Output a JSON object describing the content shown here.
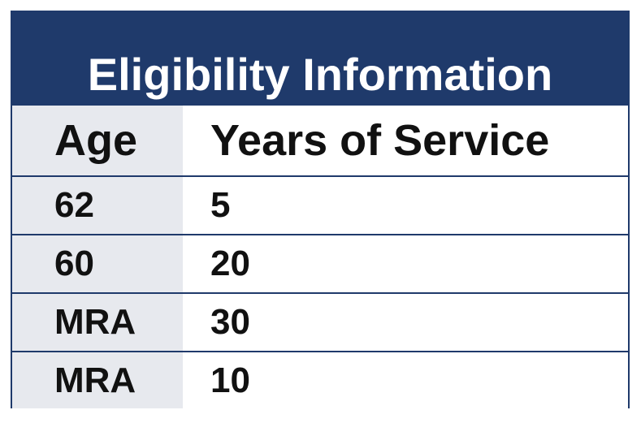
{
  "title": "Eligibility Information",
  "columns": [
    "Age",
    "Years of Service"
  ],
  "rows": [
    {
      "age": "62",
      "years_of_service": "5"
    },
    {
      "age": "60",
      "years_of_service": "20"
    },
    {
      "age": "MRA",
      "years_of_service": "30"
    },
    {
      "age": "MRA",
      "years_of_service": "10"
    }
  ],
  "colors": {
    "header_background": "#1f3a6b",
    "title_text": "#ffffff",
    "age_column_background": "#e7e9ee",
    "body_text": "#111111",
    "grid_lines": "#1f3a6b"
  }
}
